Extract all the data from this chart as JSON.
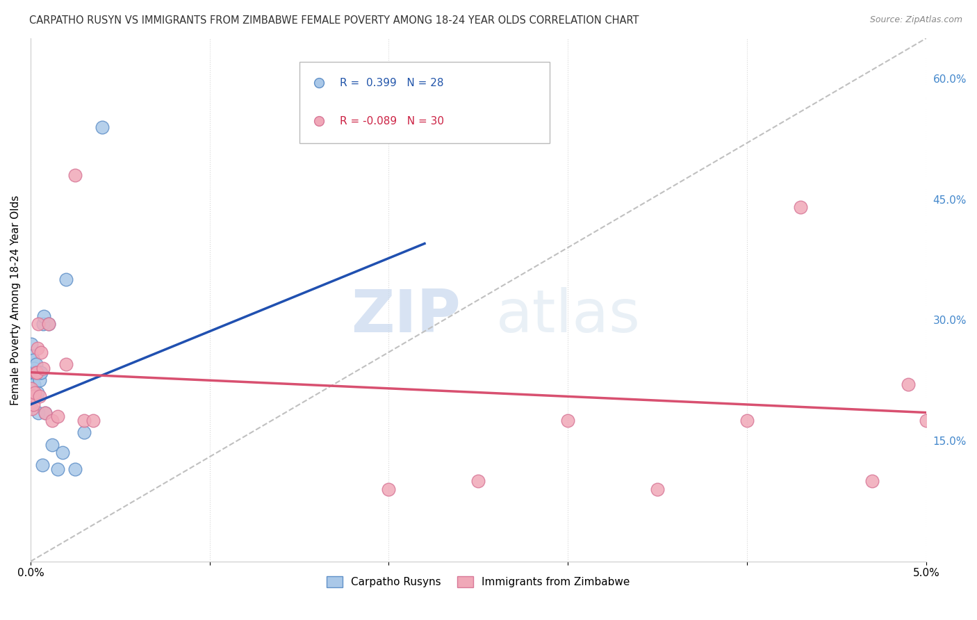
{
  "title": "CARPATHO RUSYN VS IMMIGRANTS FROM ZIMBABWE FEMALE POVERTY AMONG 18-24 YEAR OLDS CORRELATION CHART",
  "source": "Source: ZipAtlas.com",
  "ylabel": "Female Poverty Among 18-24 Year Olds",
  "x_min": 0.0,
  "x_max": 0.05,
  "y_min": 0.0,
  "y_max": 0.65,
  "x_ticks": [
    0.0,
    0.01,
    0.02,
    0.03,
    0.04,
    0.05
  ],
  "x_tick_labels": [
    "0.0%",
    "",
    "",
    "",
    "",
    "5.0%"
  ],
  "y_ticks_right": [
    0.15,
    0.3,
    0.45,
    0.6
  ],
  "y_tick_labels_right": [
    "15.0%",
    "30.0%",
    "45.0%",
    "60.0%"
  ],
  "legend_blue_r": "0.399",
  "legend_blue_n": "28",
  "legend_pink_r": "-0.089",
  "legend_pink_n": "30",
  "legend_label_blue": "Carpatho Rusyns",
  "legend_label_pink": "Immigrants from Zimbabwe",
  "blue_color": "#aac8e8",
  "pink_color": "#f0a8b8",
  "blue_edge_color": "#6090c8",
  "pink_edge_color": "#d87898",
  "blue_line_color": "#2050b0",
  "pink_line_color": "#d85070",
  "diag_line_color": "#c0c0c0",
  "watermark_zip": "ZIP",
  "watermark_atlas": "atlas",
  "blue_x": [
    5e-05,
    8e-05,
    0.0001,
    0.00012,
    0.00015,
    0.00018,
    0.0002,
    0.00022,
    0.00025,
    0.0003,
    0.00035,
    0.0004,
    0.00045,
    0.0005,
    0.00055,
    0.0006,
    0.00065,
    0.0007,
    0.00075,
    0.0008,
    0.001,
    0.0012,
    0.0015,
    0.0018,
    0.002,
    0.0025,
    0.003,
    0.004
  ],
  "blue_y": [
    0.27,
    0.255,
    0.235,
    0.22,
    0.25,
    0.22,
    0.24,
    0.235,
    0.205,
    0.245,
    0.235,
    0.21,
    0.185,
    0.225,
    0.235,
    0.235,
    0.12,
    0.295,
    0.305,
    0.185,
    0.295,
    0.145,
    0.115,
    0.135,
    0.35,
    0.115,
    0.16,
    0.54
  ],
  "pink_x": [
    5e-05,
    8e-05,
    0.0001,
    0.00015,
    0.0002,
    0.00025,
    0.0003,
    0.00035,
    0.0004,
    0.00045,
    0.0005,
    0.0006,
    0.0007,
    0.0008,
    0.001,
    0.0012,
    0.0015,
    0.002,
    0.0025,
    0.003,
    0.0035,
    0.02,
    0.025,
    0.03,
    0.035,
    0.04,
    0.043,
    0.047,
    0.049,
    0.05
  ],
  "pink_y": [
    0.215,
    0.19,
    0.205,
    0.195,
    0.205,
    0.21,
    0.235,
    0.235,
    0.265,
    0.295,
    0.205,
    0.26,
    0.24,
    0.185,
    0.295,
    0.175,
    0.18,
    0.245,
    0.48,
    0.175,
    0.175,
    0.09,
    0.1,
    0.175,
    0.09,
    0.175,
    0.44,
    0.1,
    0.22,
    0.175
  ],
  "blue_line_x": [
    0.0,
    0.022
  ],
  "blue_line_y": [
    0.195,
    0.395
  ],
  "pink_line_x": [
    0.0,
    0.05
  ],
  "pink_line_y": [
    0.235,
    0.185
  ],
  "diag_line_x": [
    0.0,
    0.05
  ],
  "diag_line_y": [
    0.0,
    0.65
  ]
}
